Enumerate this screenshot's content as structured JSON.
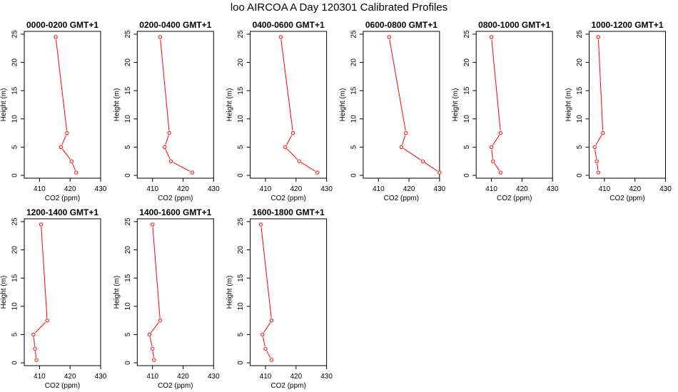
{
  "page": {
    "title": "loo AIRCOA A  Day 120301  Calibrated Profiles"
  },
  "style": {
    "series_color": "#ff0000",
    "axis_color": "#000000"
  },
  "chart_data": [
    {
      "type": "line",
      "title": "0000-0200 GMT+1",
      "xlabel": "CO2 (ppm)",
      "ylabel": "Height (m)",
      "xlim": [
        405,
        430
      ],
      "ylim": [
        -0.5,
        25.5
      ],
      "xticks": [
        410,
        420,
        430
      ],
      "yticks": [
        0,
        5,
        10,
        15,
        20,
        25
      ],
      "series": [
        {
          "x": [
            422.0,
            420.5,
            417.0,
            419.0,
            415.3
          ],
          "y": [
            0.5,
            2.5,
            5,
            7.5,
            24.5
          ]
        }
      ]
    },
    {
      "type": "line",
      "title": "0200-0400 GMT+1",
      "xlabel": "CO2 (ppm)",
      "ylabel": "Height (m)",
      "xlim": [
        405,
        430
      ],
      "ylim": [
        -0.5,
        25.5
      ],
      "xticks": [
        410,
        420,
        430
      ],
      "yticks": [
        0,
        5,
        10,
        15,
        20,
        25
      ],
      "series": [
        {
          "x": [
            423.0,
            416.0,
            414.0,
            415.5,
            412.5
          ],
          "y": [
            0.5,
            2.5,
            5,
            7.5,
            24.5
          ]
        }
      ]
    },
    {
      "type": "line",
      "title": "0400-0600 GMT+1",
      "xlabel": "CO2 (ppm)",
      "ylabel": "Height (m)",
      "xlim": [
        405,
        430
      ],
      "ylim": [
        -0.5,
        25.5
      ],
      "xticks": [
        410,
        420,
        430
      ],
      "yticks": [
        0,
        5,
        10,
        15,
        20,
        25
      ],
      "series": [
        {
          "x": [
            427.0,
            421.0,
            416.5,
            419.0,
            415.0
          ],
          "y": [
            0.5,
            2.5,
            5,
            7.5,
            24.5
          ]
        }
      ]
    },
    {
      "type": "line",
      "title": "0600-0800 GMT+1",
      "xlabel": "CO2 (ppm)",
      "ylabel": "Height (m)",
      "xlim": [
        405,
        430
      ],
      "ylim": [
        -0.5,
        25.5
      ],
      "xticks": [
        410,
        420,
        430
      ],
      "yticks": [
        0,
        5,
        10,
        15,
        20,
        25
      ],
      "series": [
        {
          "x": [
            430.0,
            424.5,
            417.5,
            419.0,
            413.5
          ],
          "y": [
            0.5,
            2.5,
            5,
            7.5,
            24.5
          ]
        }
      ]
    },
    {
      "type": "line",
      "title": "0800-1000 GMT+1",
      "xlabel": "CO2 (ppm)",
      "ylabel": "Height (m)",
      "xlim": [
        405,
        430
      ],
      "ylim": [
        -0.5,
        25.5
      ],
      "xticks": [
        410,
        420,
        430
      ],
      "yticks": [
        0,
        5,
        10,
        15,
        20,
        25
      ],
      "series": [
        {
          "x": [
            413.0,
            410.5,
            410.0,
            413.0,
            410.0
          ],
          "y": [
            0.5,
            2.5,
            5,
            7.5,
            24.5
          ]
        }
      ]
    },
    {
      "type": "line",
      "title": "1000-1200 GMT+1",
      "xlabel": "CO2 (ppm)",
      "ylabel": "Height (m)",
      "xlim": [
        405,
        430
      ],
      "ylim": [
        -0.5,
        25.5
      ],
      "xticks": [
        410,
        420,
        430
      ],
      "yticks": [
        0,
        5,
        10,
        15,
        20,
        25
      ],
      "series": [
        {
          "x": [
            408.0,
            407.5,
            406.8,
            409.5,
            408.0
          ],
          "y": [
            0.5,
            2.5,
            5,
            7.5,
            24.5
          ]
        }
      ]
    },
    {
      "type": "line",
      "title": "1200-1400 GMT+1",
      "xlabel": "CO2 (ppm)",
      "ylabel": "Height (m)",
      "xlim": [
        405,
        430
      ],
      "ylim": [
        -0.5,
        25.5
      ],
      "xticks": [
        410,
        420,
        430
      ],
      "yticks": [
        0,
        5,
        10,
        15,
        20,
        25
      ],
      "series": [
        {
          "x": [
            409.0,
            408.5,
            408.0,
            412.5,
            410.5
          ],
          "y": [
            0.5,
            2.5,
            5,
            7.5,
            24.5
          ]
        }
      ]
    },
    {
      "type": "line",
      "title": "1400-1600 GMT+1",
      "xlabel": "CO2 (ppm)",
      "ylabel": "Height (m)",
      "xlim": [
        405,
        430
      ],
      "ylim": [
        -0.5,
        25.5
      ],
      "xticks": [
        410,
        420,
        430
      ],
      "yticks": [
        0,
        5,
        10,
        15,
        20,
        25
      ],
      "series": [
        {
          "x": [
            410.5,
            410.0,
            409.0,
            412.5,
            410.0
          ],
          "y": [
            0.5,
            2.5,
            5,
            7.5,
            24.5
          ]
        }
      ]
    },
    {
      "type": "line",
      "title": "1600-1800 GMT+1",
      "xlabel": "CO2 (ppm)",
      "ylabel": "Height (m)",
      "xlim": [
        405,
        430
      ],
      "ylim": [
        -0.5,
        25.5
      ],
      "xticks": [
        410,
        420,
        430
      ],
      "yticks": [
        0,
        5,
        10,
        15,
        20,
        25
      ],
      "series": [
        {
          "x": [
            412.0,
            410.0,
            409.0,
            412.0,
            408.5
          ],
          "y": [
            0.5,
            2.5,
            5,
            7.5,
            24.5
          ]
        }
      ]
    }
  ]
}
